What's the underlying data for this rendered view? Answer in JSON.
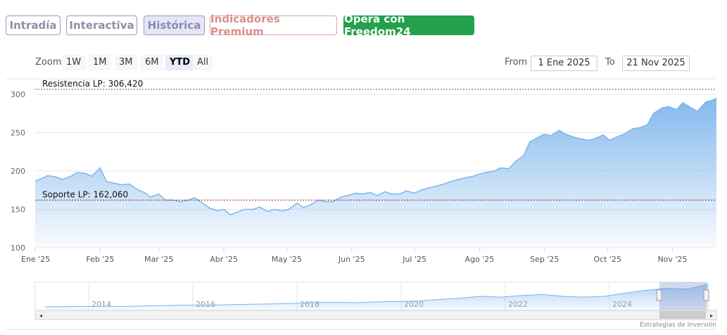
{
  "tabs": [
    {
      "label": "Intradía"
    },
    {
      "label": "Interactiva"
    },
    {
      "label": "Histórica"
    },
    {
      "label": "Indicadores Premium"
    },
    {
      "label": "Opera con Freedom24"
    }
  ],
  "zoom": {
    "label": "Zoom",
    "buttons": [
      "1W",
      "1M",
      "3M",
      "6M",
      "YTD",
      "All"
    ],
    "active": "YTD"
  },
  "range": {
    "from_label": "From",
    "from_value": "1 Ene 2025",
    "to_label": "To",
    "to_value": "21 Nov 2025"
  },
  "colors": {
    "line": "#7cb5ec",
    "resistance": "#2e7d32",
    "support": "#8b1a1a"
  },
  "chart_data": {
    "type": "area",
    "ylim": [
      100,
      320
    ],
    "yticks": [
      100,
      150,
      200,
      250,
      300
    ],
    "xtick_labels": [
      "Ene '25",
      "Feb '25",
      "Mar '25",
      "Abr '25",
      "May '25",
      "Jun '25",
      "Jul '25",
      "Ago '25",
      "Sep '25",
      "Oct '25",
      "Nov '25"
    ],
    "xtick_days": [
      0,
      31,
      59,
      90,
      120,
      151,
      181,
      212,
      243,
      273,
      304
    ],
    "x_days": [
      0,
      3,
      6,
      10,
      13,
      17,
      20,
      24,
      27,
      31,
      34,
      38,
      41,
      45,
      48,
      52,
      55,
      59,
      62,
      66,
      69,
      73,
      76,
      80,
      83,
      87,
      90,
      93,
      97,
      100,
      104,
      107,
      111,
      114,
      118,
      121,
      125,
      128,
      132,
      135,
      139,
      142,
      146,
      149,
      153,
      156,
      160,
      163,
      167,
      170,
      174,
      177,
      181,
      184,
      188,
      191,
      195,
      198,
      202,
      205,
      209,
      212,
      215,
      219,
      222,
      226,
      229,
      233,
      236,
      240,
      243,
      246,
      250,
      253,
      257,
      260,
      264,
      267,
      271,
      274,
      278,
      281,
      285,
      288,
      292,
      295,
      299,
      302,
      306,
      309,
      313,
      316,
      320,
      323,
      325
    ],
    "values": [
      187,
      190,
      194,
      192,
      189,
      193,
      198,
      197,
      193,
      204,
      186,
      184,
      182,
      183,
      177,
      172,
      166,
      170,
      162,
      162,
      160,
      162,
      165,
      158,
      152,
      148,
      150,
      143,
      147,
      150,
      150,
      153,
      147,
      150,
      148,
      150,
      158,
      152,
      157,
      162,
      160,
      160,
      166,
      168,
      171,
      170,
      172,
      168,
      173,
      170,
      170,
      174,
      171,
      175,
      178,
      180,
      183,
      186,
      189,
      191,
      193,
      196,
      198,
      200,
      204,
      203,
      212,
      220,
      238,
      244,
      248,
      246,
      253,
      248,
      244,
      242,
      240,
      242,
      247,
      240,
      245,
      248,
      255,
      256,
      260,
      275,
      282,
      284,
      280,
      289,
      282,
      278,
      290,
      292,
      295
    ],
    "reference_lines": [
      {
        "label": "Resistencia LP: 306,420",
        "value": 306.42
      },
      {
        "label": "Soporte LP: 162,060",
        "value": 162.06
      }
    ]
  },
  "navigator": {
    "year_labels": [
      "2014",
      "2016",
      "2018",
      "2020",
      "2022",
      "2024"
    ],
    "values": [
      4,
      4,
      5,
      5,
      5,
      6,
      7,
      8,
      8,
      9,
      10,
      11,
      12,
      14,
      15,
      14,
      16,
      17,
      18,
      22,
      25,
      30,
      28,
      32,
      35,
      30,
      28,
      30,
      38,
      45,
      50,
      48,
      60
    ]
  },
  "credit": "Estrategias de Inversión"
}
